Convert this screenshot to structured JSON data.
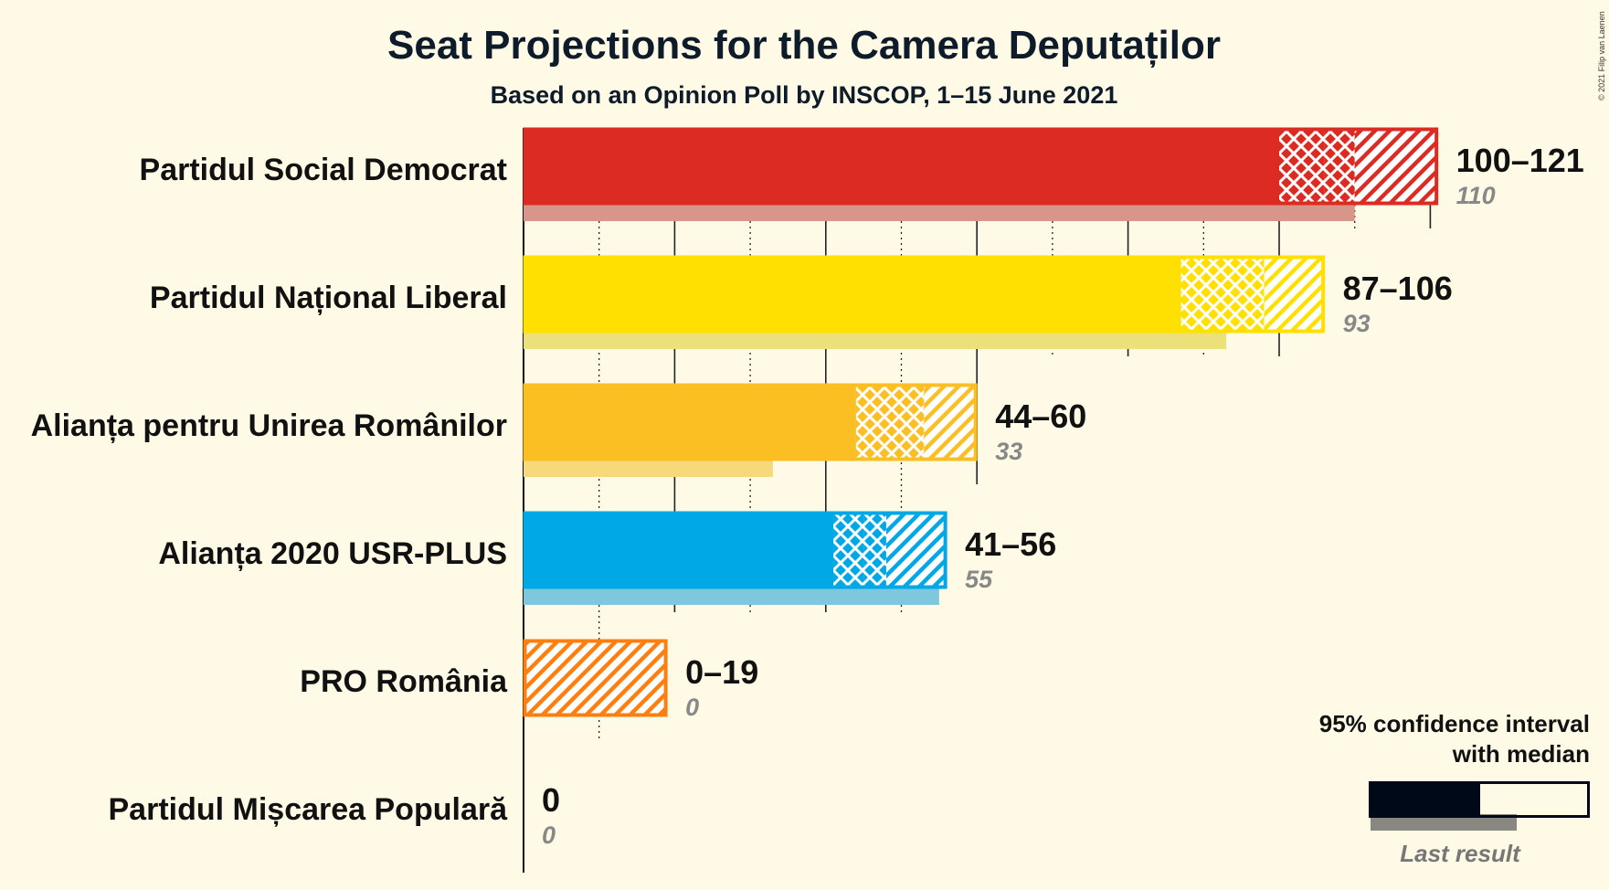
{
  "title": "Seat Projections for the Camera Deputaților",
  "subtitle": "Based on an Opinion Poll by INSCOP, 1–15 June 2021",
  "copyright": "© 2021 Filip van Laenen",
  "legend": {
    "line1": "95% confidence interval",
    "line2": "with median",
    "last_result": "Last result"
  },
  "chart_data": {
    "type": "bar",
    "orientation": "horizontal",
    "categories": [
      "Partidul Social Democrat",
      "Partidul Național Liberal",
      "Alianța pentru Unirea Românilor",
      "Alianța 2020 USR-PLUS",
      "PRO România",
      "Partidul Mișcarea Populară"
    ],
    "series": [
      {
        "name": "95% confidence interval",
        "low": [
          100,
          87,
          44,
          41,
          0,
          0
        ],
        "high": [
          121,
          106,
          60,
          56,
          19,
          0
        ]
      },
      {
        "name": "with median",
        "values": [
          110,
          98,
          53,
          48,
          0,
          0
        ]
      },
      {
        "name": "Last result",
        "values": [
          110,
          93,
          33,
          55,
          0,
          0
        ]
      }
    ],
    "ci50": {
      "low": [
        106,
        94,
        48,
        45,
        0,
        0
      ],
      "high": [
        110,
        98,
        53,
        48,
        0,
        0
      ]
    },
    "range_labels": [
      "100–121",
      "87–106",
      "44–60",
      "41–56",
      "0–19",
      "0"
    ],
    "last_labels": [
      "110",
      "93",
      "33",
      "55",
      "0",
      "0"
    ],
    "colors": [
      "#dc2b23",
      "#ffe000",
      "#fbbf24",
      "#00a8e6",
      "#ff7f0e",
      "#1a1a1a"
    ],
    "last_colors": [
      "#d8958a",
      "#ece07a",
      "#f7d87a",
      "#7fc7dc",
      "#f5b98a",
      "#999999"
    ],
    "legend_color": "#000918",
    "xlim": [
      0,
      125
    ],
    "grid": true,
    "legend_position": "bottom-right"
  }
}
